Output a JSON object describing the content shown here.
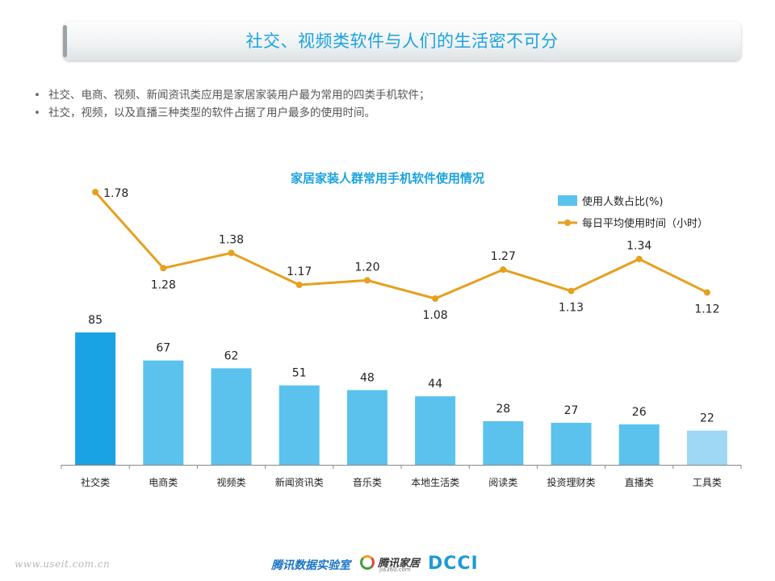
{
  "page": {
    "title": "社交、视频类软件与人们的生活密不可分",
    "bullets": [
      "社交、电商、视频、新闻资讯类应用是家居家装用户最为常用的四类手机软件；",
      "社交，视频，以及直播三种类型的软件占据了用户最多的使用时间。"
    ],
    "footer": {
      "website": "www.useit.com.cn",
      "logo_lab": "腾讯数据实验室",
      "logo_jia": "腾讯家居",
      "logo_jia_sub": "jia360.com",
      "logo_dcci": "DCCI"
    }
  },
  "chart_data": {
    "type": "bar+line",
    "title": "家居家装人群常用手机软件使用情况",
    "categories": [
      "社交类",
      "电商类",
      "视频类",
      "新闻资讯类",
      "音乐类",
      "本地生活类",
      "阅读类",
      "投资理财类",
      "直播类",
      "工具类"
    ],
    "series": [
      {
        "name": "使用人数占比(%)",
        "type": "bar",
        "values": [
          85,
          67,
          62,
          51,
          48,
          44,
          28,
          27,
          26,
          22
        ],
        "color": "#5bc2ee"
      },
      {
        "name": "每日平均使用时间（小时）",
        "type": "line",
        "values": [
          1.78,
          1.28,
          1.38,
          1.17,
          1.2,
          1.08,
          1.27,
          1.13,
          1.34,
          1.12
        ],
        "color": "#e6a01e"
      }
    ],
    "bar_color_highlight": "#1aa3e4",
    "bar_color_light": "#9ed8f5",
    "legend_position": "top-right",
    "grid": false
  }
}
